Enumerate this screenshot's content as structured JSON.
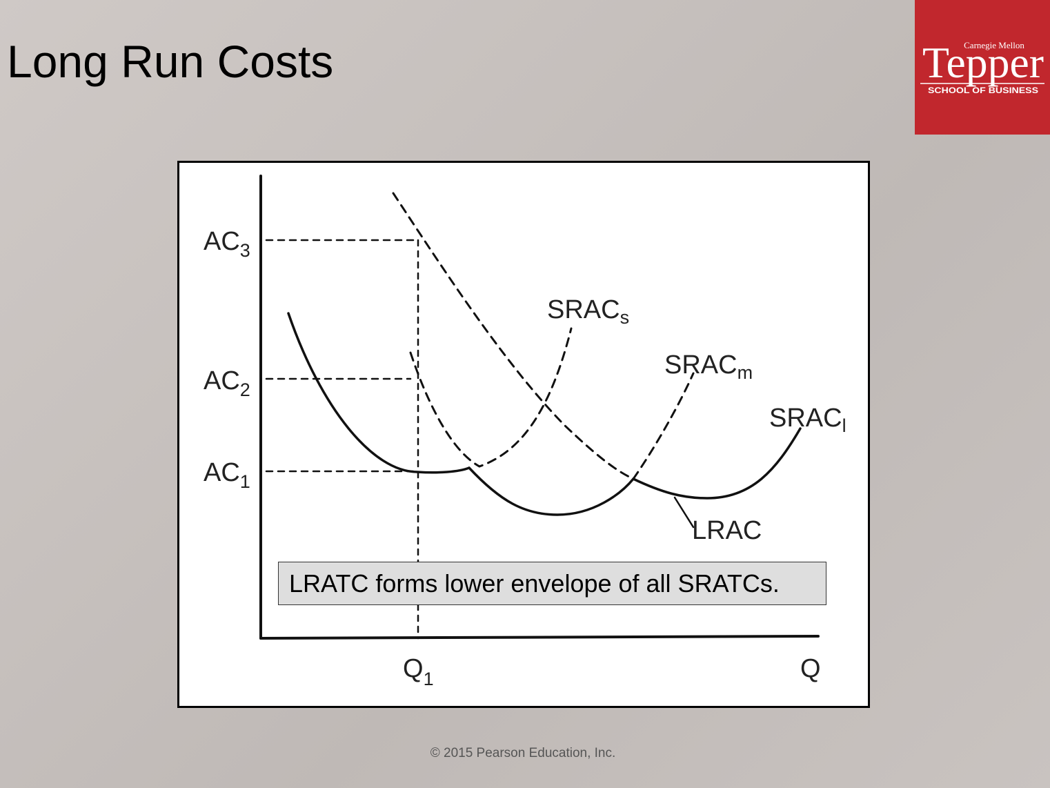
{
  "slide": {
    "title": "Long Run Costs",
    "copyright": "© 2015 Pearson Education, Inc."
  },
  "logo": {
    "line_top": "Carnegie Mellon",
    "wordmark": "Tepper",
    "line_bottom": "SCHOOL OF BUSINESS",
    "background_color": "#c1272d",
    "text_color": "#ffffff"
  },
  "diagram": {
    "y_labels": [
      {
        "main": "AC",
        "sub": "3"
      },
      {
        "main": "AC",
        "sub": "2"
      },
      {
        "main": "AC",
        "sub": "1"
      }
    ],
    "x_labels": [
      {
        "main": "Q",
        "sub": "1"
      },
      {
        "main": "Q",
        "sub": ""
      }
    ],
    "curve_labels": {
      "srac_s": {
        "main": "SRAC",
        "sub": "s"
      },
      "srac_m": {
        "main": "SRAC",
        "sub": "m"
      },
      "srac_l": {
        "main": "SRAC",
        "sub": "l"
      },
      "lrac": "LRAC"
    },
    "callout": "LRATC forms lower envelope of all SRATCs.",
    "line_color": "#111111"
  }
}
